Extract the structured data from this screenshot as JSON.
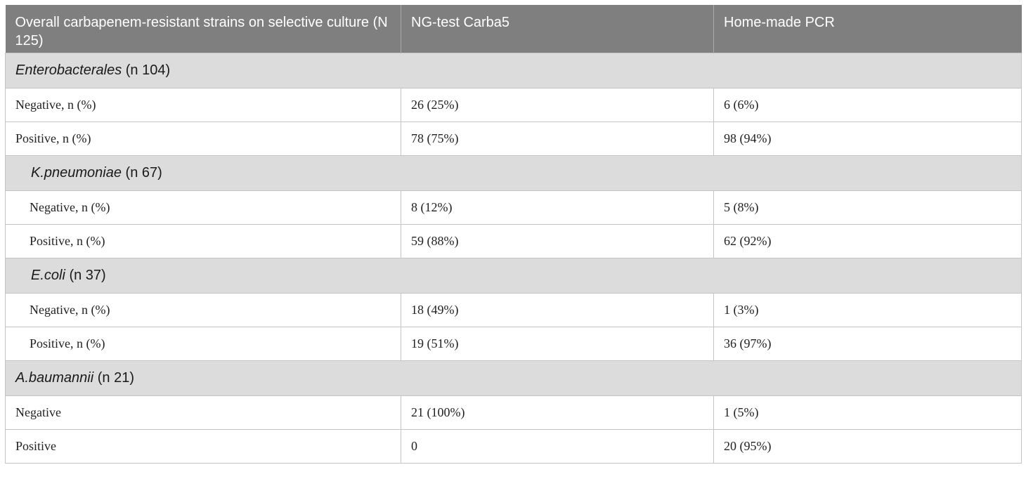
{
  "table": {
    "headers": [
      "Overall carbapenem-resistant strains on selective culture (N 125)",
      "NG-test Carba5",
      "Home-made PCR"
    ],
    "sections": [
      {
        "species": "Enterobacterales",
        "count": " (n 104)",
        "rows": [
          {
            "label": "Negative, n (%)",
            "ng_test": "26 (25%)",
            "pcr": "6 (6%)"
          },
          {
            "label": "Positive, n (%)",
            "ng_test": "78 (75%)",
            "pcr": "98 (94%)"
          }
        ]
      },
      {
        "species": "K.pneumoniae",
        "count": " (n 67)",
        "rows": [
          {
            "label": "Negative, n (%)",
            "ng_test": "8 (12%)",
            "pcr": "5 (8%)"
          },
          {
            "label": "Positive, n (%)",
            "ng_test": "59 (88%)",
            "pcr": "62 (92%)"
          }
        ]
      },
      {
        "species": "E.coli",
        "count": " (n 37)",
        "rows": [
          {
            "label": "Negative, n (%)",
            "ng_test": "18 (49%)",
            "pcr": "1 (3%)"
          },
          {
            "label": "Positive, n (%)",
            "ng_test": "19 (51%)",
            "pcr": "36 (97%)"
          }
        ]
      },
      {
        "species": "A.baumannii",
        "count": " (n 21)",
        "rows": [
          {
            "label": "Negative",
            "ng_test": "21 (100%)",
            "pcr": "1 (5%)"
          },
          {
            "label": "Positive",
            "ng_test": "0",
            "pcr": "20 (95%)"
          }
        ]
      }
    ]
  }
}
